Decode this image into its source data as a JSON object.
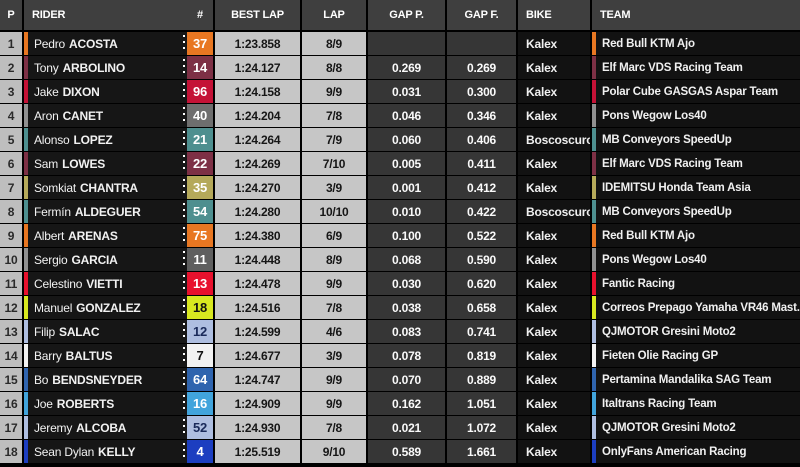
{
  "header": {
    "p": "P",
    "rider": "RIDER",
    "number": "#",
    "best_lap": "BEST LAP",
    "lap": "LAP",
    "gap_p": "GAP P.",
    "gap_f": "GAP F.",
    "bike": "BIKE",
    "team": "TEAM"
  },
  "colors": {
    "background": "#000000",
    "header_bg": "#3F3F3F",
    "position_bg": "#BEBEBE",
    "rider_bg": "#161616",
    "time_bg": "#C6C6C6",
    "gap_bg": "#363636",
    "team_bg": "#121212"
  },
  "rows": [
    {
      "p": "1",
      "first": "Pedro",
      "last": "ACOSTA",
      "num": "37",
      "badge_bg": "#E87722",
      "badge_fg": "#FFFFFF",
      "accent": "#E87722",
      "best_lap": "1:23.858",
      "lap": "8/9",
      "gap_p": "",
      "gap_f": "",
      "bike": "Kalex",
      "team": "Red Bull KTM Ajo"
    },
    {
      "p": "2",
      "first": "Tony",
      "last": "ARBOLINO",
      "num": "14",
      "badge_bg": "#7D3045",
      "badge_fg": "#FFFFFF",
      "accent": "#7D3045",
      "best_lap": "1:24.127",
      "lap": "8/8",
      "gap_p": "0.269",
      "gap_f": "0.269",
      "bike": "Kalex",
      "team": "Elf Marc VDS Racing Team"
    },
    {
      "p": "3",
      "first": "Jake",
      "last": "DIXON",
      "num": "96",
      "badge_bg": "#C41236",
      "badge_fg": "#FFFFFF",
      "accent": "#C41236",
      "best_lap": "1:24.158",
      "lap": "9/9",
      "gap_p": "0.031",
      "gap_f": "0.300",
      "bike": "Kalex",
      "team": "Polar Cube GASGAS Aspar Team"
    },
    {
      "p": "4",
      "first": "Aron",
      "last": "CANET",
      "num": "40",
      "badge_bg": "#6E6E6E",
      "badge_fg": "#FFFFFF",
      "accent": "#909090",
      "best_lap": "1:24.204",
      "lap": "7/8",
      "gap_p": "0.046",
      "gap_f": "0.346",
      "bike": "Kalex",
      "team": "Pons Wegow Los40"
    },
    {
      "p": "5",
      "first": "Alonso",
      "last": "LOPEZ",
      "num": "21",
      "badge_bg": "#4E8F8F",
      "badge_fg": "#FFFFFF",
      "accent": "#4E8F8F",
      "best_lap": "1:24.264",
      "lap": "7/9",
      "gap_p": "0.060",
      "gap_f": "0.406",
      "bike": "Boscoscuro",
      "team": "MB Conveyors SpeedUp"
    },
    {
      "p": "6",
      "first": "Sam",
      "last": "LOWES",
      "num": "22",
      "badge_bg": "#7D3045",
      "badge_fg": "#FFFFFF",
      "accent": "#7D3045",
      "best_lap": "1:24.269",
      "lap": "7/10",
      "gap_p": "0.005",
      "gap_f": "0.411",
      "bike": "Kalex",
      "team": "Elf Marc VDS Racing Team"
    },
    {
      "p": "7",
      "first": "Somkiat",
      "last": "CHANTRA",
      "num": "35",
      "badge_bg": "#B5A95A",
      "badge_fg": "#FFFFFF",
      "accent": "#B5A95A",
      "best_lap": "1:24.270",
      "lap": "3/9",
      "gap_p": "0.001",
      "gap_f": "0.412",
      "bike": "Kalex",
      "team": "IDEMITSU Honda Team Asia"
    },
    {
      "p": "8",
      "first": "Fermín",
      "last": "ALDEGUER",
      "num": "54",
      "badge_bg": "#4E8F8F",
      "badge_fg": "#FFFFFF",
      "accent": "#4E8F8F",
      "best_lap": "1:24.280",
      "lap": "10/10",
      "gap_p": "0.010",
      "gap_f": "0.422",
      "bike": "Boscoscuro",
      "team": "MB Conveyors SpeedUp"
    },
    {
      "p": "9",
      "first": "Albert",
      "last": "ARENAS",
      "num": "75",
      "badge_bg": "#E87722",
      "badge_fg": "#FFFFFF",
      "accent": "#E87722",
      "best_lap": "1:24.380",
      "lap": "6/9",
      "gap_p": "0.100",
      "gap_f": "0.522",
      "bike": "Kalex",
      "team": "Red Bull KTM Ajo"
    },
    {
      "p": "10",
      "first": "Sergio",
      "last": "GARCIA",
      "num": "11",
      "badge_bg": "#5F5F5F",
      "badge_fg": "#FFFFFF",
      "accent": "#909090",
      "best_lap": "1:24.448",
      "lap": "8/9",
      "gap_p": "0.068",
      "gap_f": "0.590",
      "bike": "Kalex",
      "team": "Pons Wegow Los40"
    },
    {
      "p": "11",
      "first": "Celestino",
      "last": "VIETTI",
      "num": "13",
      "badge_bg": "#E8112D",
      "badge_fg": "#FFFFFF",
      "accent": "#E8112D",
      "best_lap": "1:24.478",
      "lap": "9/9",
      "gap_p": "0.030",
      "gap_f": "0.620",
      "bike": "Kalex",
      "team": "Fantic Racing"
    },
    {
      "p": "12",
      "first": "Manuel",
      "last": "GONZALEZ",
      "num": "18",
      "badge_bg": "#D8E820",
      "badge_fg": "#121212",
      "accent": "#D8E820",
      "best_lap": "1:24.516",
      "lap": "7/8",
      "gap_p": "0.038",
      "gap_f": "0.658",
      "bike": "Kalex",
      "team": "Correos Prepago Yamaha VR46 Mast..."
    },
    {
      "p": "13",
      "first": "Filip",
      "last": "SALAC",
      "num": "12",
      "badge_bg": "#AEBEE0",
      "badge_fg": "#1A2A5A",
      "accent": "#AEBEE0",
      "best_lap": "1:24.599",
      "lap": "4/6",
      "gap_p": "0.083",
      "gap_f": "0.741",
      "bike": "Kalex",
      "team": "QJMOTOR Gresini Moto2"
    },
    {
      "p": "14",
      "first": "Barry",
      "last": "BALTUS",
      "num": "7",
      "badge_bg": "#F2F2F2",
      "badge_fg": "#121212",
      "accent": "#F2F2F2",
      "best_lap": "1:24.677",
      "lap": "3/9",
      "gap_p": "0.078",
      "gap_f": "0.819",
      "bike": "Kalex",
      "team": "Fieten Olie Racing GP"
    },
    {
      "p": "15",
      "first": "Bo",
      "last": "BENDSNEYDER",
      "num": "64",
      "badge_bg": "#2F64AE",
      "badge_fg": "#FFFFFF",
      "accent": "#2F64AE",
      "best_lap": "1:24.747",
      "lap": "9/9",
      "gap_p": "0.070",
      "gap_f": "0.889",
      "bike": "Kalex",
      "team": "Pertamina Mandalika SAG Team"
    },
    {
      "p": "16",
      "first": "Joe",
      "last": "ROBERTS",
      "num": "16",
      "badge_bg": "#41A4DC",
      "badge_fg": "#FFFFFF",
      "accent": "#41A4DC",
      "best_lap": "1:24.909",
      "lap": "9/9",
      "gap_p": "0.162",
      "gap_f": "1.051",
      "bike": "Kalex",
      "team": "Italtrans Racing Team"
    },
    {
      "p": "17",
      "first": "Jeremy",
      "last": "ALCOBA",
      "num": "52",
      "badge_bg": "#AEBEE0",
      "badge_fg": "#1A2A5A",
      "accent": "#AEBEE0",
      "best_lap": "1:24.930",
      "lap": "7/8",
      "gap_p": "0.021",
      "gap_f": "1.072",
      "bike": "Kalex",
      "team": "QJMOTOR Gresini Moto2"
    },
    {
      "p": "18",
      "first": "Sean Dylan",
      "last": "KELLY",
      "num": "4",
      "badge_bg": "#1C3EC0",
      "badge_fg": "#FFFFFF",
      "accent": "#1C3EC0",
      "best_lap": "1:25.519",
      "lap": "9/10",
      "gap_p": "0.589",
      "gap_f": "1.661",
      "bike": "Kalex",
      "team": "OnlyFans American Racing"
    }
  ]
}
